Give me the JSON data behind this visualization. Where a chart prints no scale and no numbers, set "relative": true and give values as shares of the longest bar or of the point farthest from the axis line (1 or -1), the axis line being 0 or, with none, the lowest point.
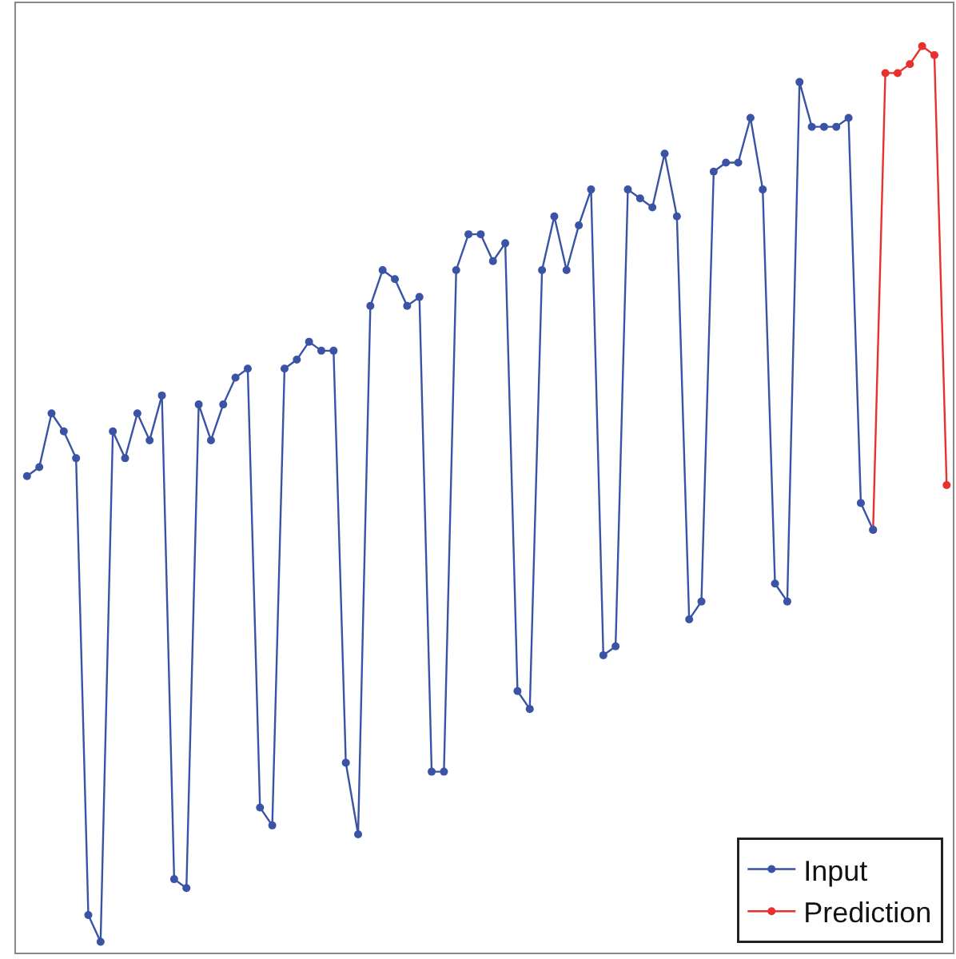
{
  "chart_data": {
    "type": "line",
    "relative": true,
    "marker": "circle",
    "line_style": "solid",
    "legend": "bottom right",
    "categories": [
      null,
      null,
      null,
      null,
      null,
      null,
      null,
      null,
      null,
      null,
      null,
      null,
      null,
      null,
      null,
      null,
      null,
      null,
      null,
      null,
      null,
      null,
      null,
      null,
      null,
      null,
      null,
      null,
      null,
      null,
      null,
      null,
      null,
      null,
      null,
      null,
      null,
      null,
      null,
      null,
      null,
      null,
      null,
      null,
      null,
      null,
      null,
      null,
      null,
      null,
      null,
      null,
      null,
      null,
      null,
      null,
      null,
      null,
      null,
      null,
      null,
      null,
      null,
      null,
      null,
      null,
      null,
      null,
      null,
      null,
      null,
      null,
      null,
      null,
      null,
      null
    ],
    "series": [
      {
        "name": "Input",
        "color": "#3a53a4",
        "values": [
          0.52,
          0.53,
          0.59,
          0.57,
          0.54,
          0.03,
          0,
          0.57,
          0.54,
          0.59,
          0.56,
          0.61,
          0.07,
          0.06,
          0.6,
          0.56,
          0.6,
          0.63,
          0.64,
          0.15,
          0.13,
          0.64,
          0.65,
          0.67,
          0.66,
          0.66,
          0.2,
          0.12,
          0.71,
          0.75,
          0.74,
          0.71,
          0.72,
          0.19,
          0.19,
          0.75,
          0.79,
          0.79,
          0.76,
          0.78,
          0.28,
          0.26,
          0.75,
          0.81,
          0.75,
          0.8,
          0.84,
          0.32,
          0.33,
          0.84,
          0.83,
          0.82,
          0.88,
          0.81,
          0.36,
          0.38,
          0.86,
          0.87,
          0.87,
          0.92,
          0.84,
          0.4,
          0.38,
          0.96,
          0.91,
          0.91,
          0.91,
          0.92,
          0.49,
          0.46,
          null,
          null,
          null,
          null,
          null,
          null
        ]
      },
      {
        "name": "Prediction",
        "color": "#e8312f",
        "values": [
          null,
          null,
          null,
          null,
          null,
          null,
          null,
          null,
          null,
          null,
          null,
          null,
          null,
          null,
          null,
          null,
          null,
          null,
          null,
          null,
          null,
          null,
          null,
          null,
          null,
          null,
          null,
          null,
          null,
          null,
          null,
          null,
          null,
          null,
          null,
          null,
          null,
          null,
          null,
          null,
          null,
          null,
          null,
          null,
          null,
          null,
          null,
          null,
          null,
          null,
          null,
          null,
          null,
          null,
          null,
          null,
          null,
          null,
          null,
          null,
          null,
          null,
          null,
          null,
          null,
          null,
          null,
          null,
          null,
          0.46,
          0.97,
          0.97,
          0.98,
          1.0,
          0.99,
          0.51
        ]
      }
    ]
  }
}
